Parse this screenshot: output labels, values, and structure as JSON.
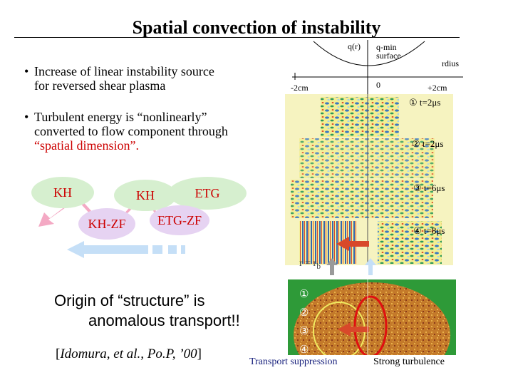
{
  "title": "Spatial convection of instability",
  "bullets": {
    "marker": "•",
    "b1_line1": "Increase of linear instability source",
    "b1_line2": "for reversed shear plasma",
    "b2_line1": "Turbulent energy is “nonlinearly”",
    "b2_line2": "converted to flow component through",
    "b2_line3": "“spatial dimension”."
  },
  "modes": {
    "kh1": "KH",
    "kh2": "KH",
    "etg": "ETG",
    "khzf": "KH-ZF",
    "etgzf": "ETG-ZF"
  },
  "profile": {
    "qr": "q(r)",
    "qmin_line1": "q-min",
    "qmin_line2": "surface",
    "rdius": "rdius",
    "minus": "-2cm",
    "zero": "0",
    "plus": "+2cm"
  },
  "panels": {
    "p1": "① t=2μs",
    "p2": "② t=2μs",
    "p3": "③ t=6μs",
    "p4": "④ t=8μs",
    "rb": "r = r",
    "rb_sub": "b"
  },
  "lower": {
    "m1": "①",
    "m2": "②",
    "m3": "③",
    "m4": "④"
  },
  "origin_line1": "Origin of “structure” is",
  "origin_line2": "anomalous transport!!",
  "citation_open": "[",
  "citation_italic": "Idomura, et al., Po.P, ’00",
  "citation_close": "]",
  "transport_label": "Transport suppression",
  "strong_label": "Strong turbulence",
  "colors": {
    "mode_text": "#cc0000",
    "kh_blob": "#d6efcf",
    "zf_blob": "#e6d3f2",
    "pink_arrow": "#f4a9c4",
    "blue_arrow": "#c5dff7",
    "red_arrow": "#d8482a",
    "circle_red": "#e01010",
    "circle_yellow": "#f0ea60"
  }
}
